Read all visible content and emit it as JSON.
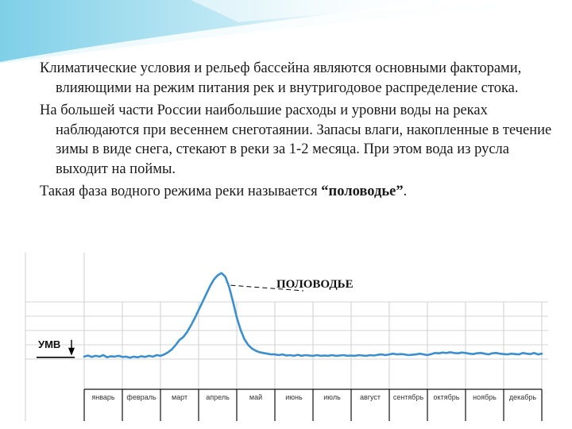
{
  "slide": {
    "accent_color": "#7ecfe8",
    "paragraphs": [
      {
        "text": "Климатические условия и рельеф бассейна являются основными факторами, влияющими на режим питания рек и внутригодовое распределение стока."
      },
      {
        "text": "На большей части России наибольшие расходы и уровни воды на реках наблюдаются при весеннем снеготаянии. Запасы влаги, накопленные в течение зимы в виде снега, стекают в реки за 1-2 месяца. При этом вода из русла выходит на поймы."
      },
      {
        "pre": "Такая фаза водного режима реки называется ",
        "bold": "“половодье”",
        "post": "."
      }
    ]
  },
  "chart_data": {
    "type": "line",
    "annotation": "ПОЛОВОДЬЕ",
    "reference_label": "УМВ",
    "line_color": "#3a8fd0",
    "categories": [
      "январь",
      "февраль",
      "март",
      "апрель",
      "май",
      "июнь",
      "июль",
      "август",
      "сентябрь",
      "октябрь",
      "ноябрь",
      "декабрь"
    ],
    "x": [
      0,
      0.1,
      0.2,
      0.3,
      0.4,
      0.5,
      0.6,
      0.7,
      0.8,
      0.9,
      1.0,
      1.1,
      1.2,
      1.3,
      1.4,
      1.5,
      1.6,
      1.7,
      1.8,
      1.9,
      2.0,
      2.1,
      2.2,
      2.3,
      2.4,
      2.5,
      2.6,
      2.7,
      2.8,
      2.9,
      3.0,
      3.1,
      3.2,
      3.3,
      3.4,
      3.5,
      3.6,
      3.7,
      3.8,
      3.9,
      4.0,
      4.1,
      4.2,
      4.3,
      4.4,
      4.5,
      4.6,
      4.7,
      4.8,
      4.9,
      5.0,
      5.1,
      5.2,
      5.3,
      5.4,
      5.5,
      5.6,
      5.7,
      5.8,
      5.9,
      6.0,
      6.1,
      6.2,
      6.3,
      6.4,
      6.5,
      6.6,
      6.7,
      6.8,
      6.9,
      7.0,
      7.1,
      7.2,
      7.3,
      7.4,
      7.5,
      7.6,
      7.7,
      7.8,
      7.9,
      8.0,
      8.1,
      8.2,
      8.3,
      8.4,
      8.5,
      8.6,
      8.7,
      8.8,
      8.9,
      9.0,
      9.1,
      9.2,
      9.3,
      9.4,
      9.5,
      9.6,
      9.7,
      9.8,
      9.9,
      10.0,
      10.1,
      10.2,
      10.3,
      10.4,
      10.5,
      10.6,
      10.7,
      10.8,
      10.9,
      11.0,
      11.1,
      11.2,
      11.3,
      11.4,
      11.5,
      11.6,
      11.7,
      11.8,
      11.9,
      12.0
    ],
    "values": [
      1.0,
      1.15,
      0.95,
      1.1,
      1.0,
      1.2,
      0.9,
      1.05,
      1.0,
      1.1,
      0.95,
      1.0,
      0.85,
      1.0,
      0.9,
      1.05,
      0.95,
      1.1,
      1.0,
      1.2,
      1.1,
      1.3,
      1.6,
      2.0,
      2.6,
      3.3,
      3.7,
      4.4,
      5.3,
      6.3,
      7.4,
      8.5,
      9.6,
      10.7,
      11.6,
      12.2,
      12.5,
      12.0,
      10.6,
      8.6,
      6.4,
      4.7,
      3.4,
      2.6,
      2.1,
      1.8,
      1.6,
      1.5,
      1.4,
      1.3,
      1.3,
      1.2,
      1.3,
      1.15,
      1.2,
      1.1,
      1.25,
      1.1,
      1.2,
      1.15,
      1.1,
      1.2,
      1.1,
      1.15,
      1.1,
      1.2,
      1.1,
      1.15,
      1.2,
      1.1,
      1.15,
      1.1,
      1.2,
      1.15,
      1.1,
      1.2,
      1.15,
      1.25,
      1.3,
      1.2,
      1.3,
      1.4,
      1.3,
      1.35,
      1.3,
      1.2,
      1.25,
      1.3,
      1.4,
      1.3,
      1.2,
      1.35,
      1.5,
      1.45,
      1.55,
      1.5,
      1.6,
      1.5,
      1.45,
      1.55,
      1.5,
      1.4,
      1.35,
      1.45,
      1.5,
      1.4,
      1.3,
      1.45,
      1.5,
      1.4,
      1.35,
      1.3,
      1.4,
      1.35,
      1.3,
      1.5,
      1.4,
      1.35,
      1.5,
      1.3,
      1.4
    ],
    "reference_value": 0.9,
    "ylim": [
      0,
      14
    ],
    "grid": true
  }
}
